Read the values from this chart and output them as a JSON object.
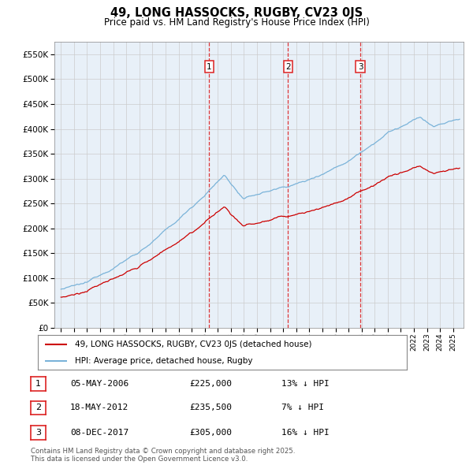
{
  "title": "49, LONG HASSOCKS, RUGBY, CV23 0JS",
  "subtitle": "Price paid vs. HM Land Registry's House Price Index (HPI)",
  "ylim": [
    0,
    575000
  ],
  "yticks": [
    0,
    50000,
    100000,
    150000,
    200000,
    250000,
    300000,
    350000,
    400000,
    450000,
    500000,
    550000
  ],
  "hpi_color": "#7ab3d9",
  "price_color": "#cc0000",
  "vline_color": "#dd2222",
  "plot_bg_color": "#e8f0f8",
  "sales": [
    {
      "date_num": 2006.35,
      "label": "1"
    },
    {
      "date_num": 2012.38,
      "label": "2"
    },
    {
      "date_num": 2017.92,
      "label": "3"
    }
  ],
  "legend_entries": [
    "49, LONG HASSOCKS, RUGBY, CV23 0JS (detached house)",
    "HPI: Average price, detached house, Rugby"
  ],
  "table_rows": [
    {
      "num": "1",
      "date": "05-MAY-2006",
      "price": "£225,000",
      "hpi": "13% ↓ HPI"
    },
    {
      "num": "2",
      "date": "18-MAY-2012",
      "price": "£235,500",
      "hpi": "7% ↓ HPI"
    },
    {
      "num": "3",
      "date": "08-DEC-2017",
      "price": "£305,000",
      "hpi": "16% ↓ HPI"
    }
  ],
  "footer": "Contains HM Land Registry data © Crown copyright and database right 2025.\nThis data is licensed under the Open Government Licence v3.0.",
  "bg_color": "#ffffff",
  "grid_color": "#cccccc"
}
